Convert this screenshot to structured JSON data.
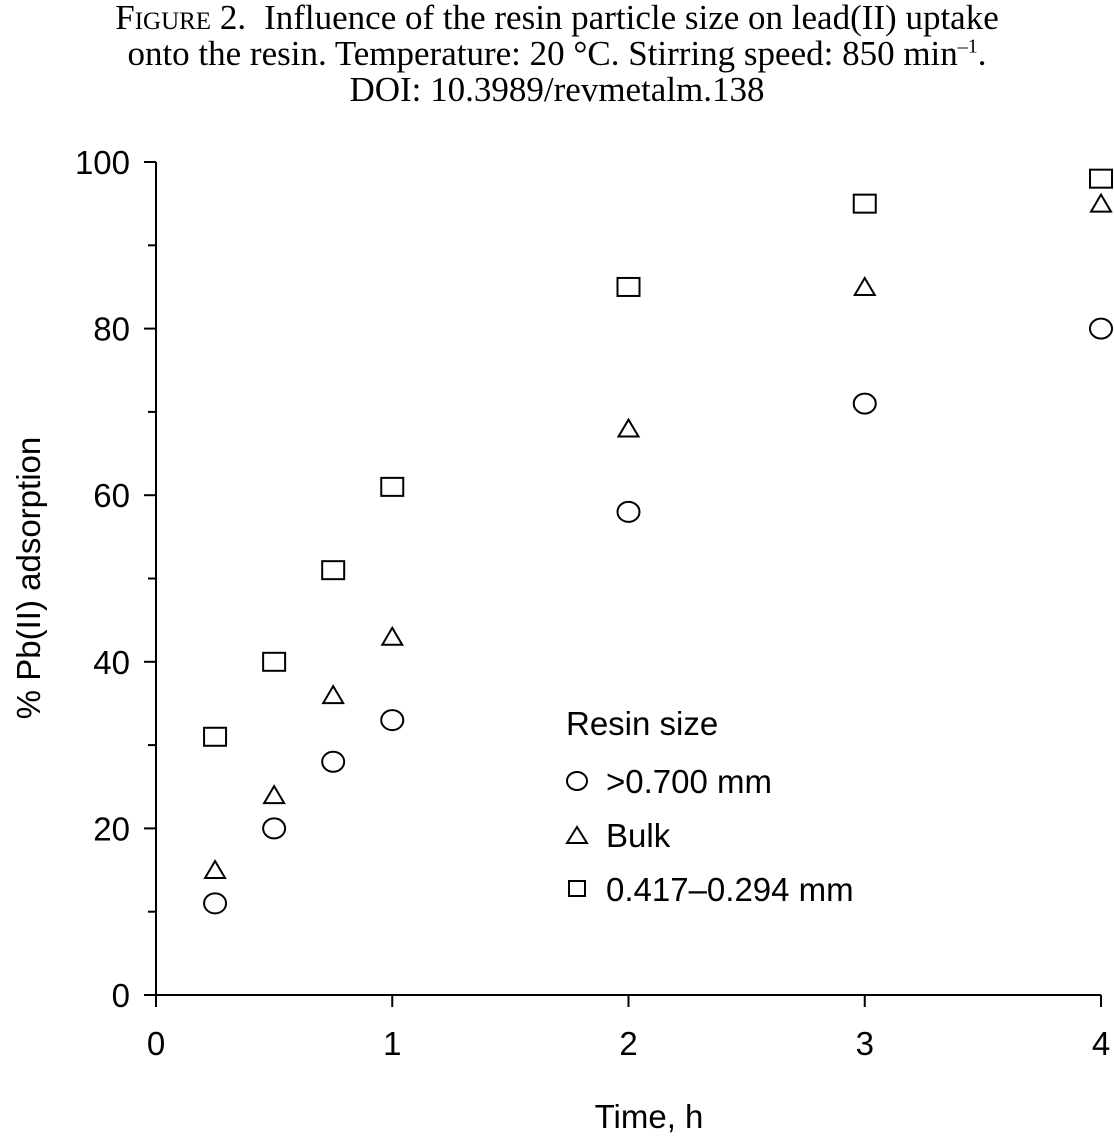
{
  "caption": {
    "figure_label": "Figure 2.",
    "line1_text": "Influence of the resin particle size on lead(II) uptake",
    "line2_text": "onto the resin. Temperature: 20 °C. Stirring speed: 850 min",
    "line2_sup": "–1",
    "line2_end": ".",
    "line3_text": "DOI: 10.3989/revmetalm.138"
  },
  "chart_data": {
    "type": "scatter",
    "title": "",
    "xlabel": "Time, h",
    "ylabel": "% Pb(II) adsorption",
    "xlim": [
      0,
      4
    ],
    "ylim": [
      0,
      100
    ],
    "x_ticks": [
      0,
      1,
      2,
      3,
      4
    ],
    "x_tick_labels": [
      "0",
      "1",
      "2",
      "3",
      "4"
    ],
    "y_ticks": [
      0,
      20,
      40,
      60,
      80,
      100
    ],
    "y_tick_labels": [
      "0",
      "20",
      "40",
      "60",
      "80",
      "100"
    ],
    "y_minor_ticks": [
      10,
      30,
      50,
      70,
      90
    ],
    "grid": false,
    "legend": {
      "title": "Resin size",
      "placement": "center-right"
    },
    "x": [
      0.25,
      0.5,
      0.75,
      1,
      2,
      3,
      4
    ],
    "series": [
      {
        "name": ">0.700 mm",
        "marker": "circle",
        "values": [
          11,
          20,
          28,
          33,
          58,
          71,
          80
        ]
      },
      {
        "name": "Bulk",
        "marker": "triangle",
        "values": [
          15,
          24,
          36,
          43,
          68,
          85,
          95
        ]
      },
      {
        "name": "0.417–0.294 mm",
        "marker": "square",
        "values": [
          31,
          40,
          51,
          61,
          85,
          95,
          98
        ]
      }
    ]
  }
}
